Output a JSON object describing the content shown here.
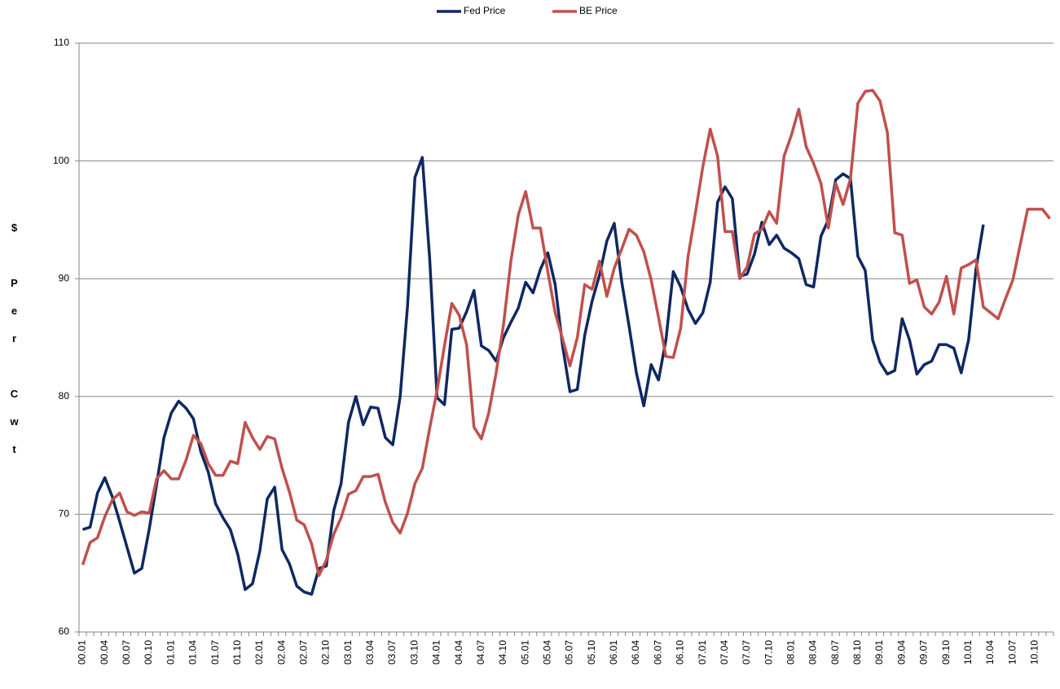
{
  "chart_data": {
    "type": "line",
    "ylabel": "$ Per Cwt",
    "categories": [
      "00.01",
      null,
      null,
      "00.04",
      null,
      null,
      "00.07",
      null,
      null,
      "00.10",
      null,
      null,
      "01.01",
      null,
      null,
      "01.04",
      null,
      null,
      "01.07",
      null,
      null,
      "01.10",
      null,
      null,
      "02.01",
      null,
      null,
      "02.04",
      null,
      null,
      "02.07",
      null,
      null,
      "02.10",
      null,
      null,
      "03.01",
      null,
      null,
      "03.04",
      null,
      null,
      "03.07",
      null,
      null,
      "03.10",
      null,
      null,
      "04.01",
      null,
      null,
      "04.04",
      null,
      null,
      "04.07",
      null,
      null,
      "04.10",
      null,
      null,
      "05.01",
      null,
      null,
      "05.04",
      null,
      null,
      "05.07",
      null,
      null,
      "05.10",
      null,
      null,
      "06.01",
      null,
      null,
      "06.04",
      null,
      null,
      "06.07",
      null,
      null,
      "06.10",
      null,
      null,
      "07.01",
      null,
      null,
      "07.04",
      null,
      null,
      "07.07",
      null,
      null,
      "07.10",
      null,
      null,
      "08.01",
      null,
      null,
      "08.04",
      null,
      null,
      "08.07",
      null,
      null,
      "08.10",
      null,
      null,
      "09.01",
      null,
      null,
      "09.04",
      null,
      null,
      "09.07",
      null,
      null,
      "09.10",
      null,
      null,
      "10.01",
      null,
      null,
      "10.04",
      null,
      null,
      "10.07",
      null,
      null,
      "10.10",
      null,
      null
    ],
    "series": [
      {
        "name": "Fed Price",
        "color": "#0f2862",
        "values": [
          68.7,
          68.9,
          71.8,
          73.1,
          71.5,
          69.4,
          67.2,
          65.0,
          65.4,
          68.7,
          72.5,
          76.5,
          78.6,
          79.6,
          79.0,
          78.1,
          75.3,
          73.6,
          70.9,
          69.7,
          68.7,
          66.6,
          63.6,
          64.1,
          66.9,
          71.3,
          72.3,
          67.0,
          65.8,
          63.9,
          63.4,
          63.2,
          65.4,
          65.6,
          70.3,
          72.6,
          77.8,
          80.0,
          77.6,
          79.1,
          79.0,
          76.5,
          75.9,
          80.0,
          87.7,
          98.6,
          100.3,
          91.7,
          79.9,
          79.3,
          85.7,
          85.8,
          87.2,
          89.0,
          84.3,
          83.9,
          83.0,
          85.0,
          86.3,
          87.5,
          89.7,
          88.8,
          90.8,
          92.2,
          89.5,
          84.3,
          80.4,
          80.6,
          85.2,
          88.1,
          90.3,
          93.2,
          94.7,
          89.8,
          86.0,
          82.0,
          79.2,
          82.7,
          81.4,
          84.8,
          90.6,
          89.3,
          87.4,
          86.2,
          87.1,
          89.7,
          96.5,
          97.8,
          96.8,
          90.2,
          90.4,
          92.1,
          94.8,
          92.9,
          93.7,
          92.6,
          92.2,
          91.7,
          89.5,
          89.3,
          93.6,
          95.0,
          98.4,
          98.9,
          98.5,
          91.9,
          90.7,
          84.8,
          82.9,
          81.9,
          82.2,
          86.6,
          84.8,
          81.9,
          82.7,
          83.0,
          84.4,
          84.4,
          84.1,
          82.0,
          84.8,
          90.8,
          94.6,
          null,
          null,
          null,
          null,
          null,
          null,
          null,
          null,
          null
        ]
      },
      {
        "name": "BE Price",
        "color": "#c0504d",
        "values": [
          65.7,
          67.6,
          68.0,
          69.8,
          71.2,
          71.8,
          70.2,
          69.9,
          70.2,
          70.1,
          73.0,
          73.7,
          73.0,
          73.0,
          74.6,
          76.7,
          76.0,
          74.3,
          73.3,
          73.3,
          74.5,
          74.3,
          77.8,
          76.5,
          75.5,
          76.6,
          76.4,
          73.9,
          71.9,
          69.5,
          69.1,
          67.5,
          64.8,
          66.1,
          68.3,
          69.7,
          71.7,
          72.0,
          73.2,
          73.2,
          73.4,
          71.0,
          69.3,
          68.4,
          70.1,
          72.6,
          73.9,
          77.3,
          80.5,
          84.3,
          87.9,
          86.9,
          84.4,
          77.4,
          76.4,
          78.6,
          82.0,
          86.1,
          91.5,
          95.4,
          97.4,
          94.3,
          94.3,
          90.6,
          87.1,
          84.9,
          82.6,
          85.0,
          89.5,
          89.1,
          91.5,
          88.5,
          90.9,
          92.5,
          94.2,
          93.7,
          92.3,
          89.9,
          86.7,
          83.4,
          83.3,
          85.8,
          91.9,
          95.6,
          99.5,
          102.7,
          100.4,
          94.0,
          94.0,
          90.0,
          91.0,
          93.8,
          94.2,
          95.7,
          94.7,
          100.4,
          102.2,
          104.4,
          101.2,
          99.8,
          98.1,
          94.3,
          98.1,
          96.3,
          98.5,
          104.9,
          105.9,
          106.0,
          105.1,
          102.4,
          93.9,
          93.7,
          89.6,
          89.9,
          87.6,
          87.0,
          88.0,
          90.2,
          87.0,
          90.9,
          91.2,
          91.6,
          87.6,
          87.1,
          86.6,
          88.3,
          89.9,
          92.9,
          95.9,
          95.9,
          95.9,
          95.1
        ]
      }
    ],
    "ylim": [
      60,
      110
    ],
    "yticks": [
      60,
      70,
      80,
      90,
      100,
      110
    ],
    "grid": true,
    "legend": "top"
  }
}
